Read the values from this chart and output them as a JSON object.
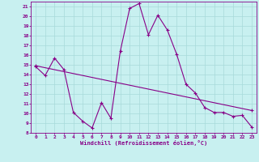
{
  "xlabel": "Windchill (Refroidissement éolien,°C)",
  "bg_color": "#c8f0f0",
  "grid_color": "#a8dada",
  "line_color": "#880088",
  "xlim": [
    -0.5,
    23.5
  ],
  "ylim": [
    8,
    21.5
  ],
  "xticks": [
    0,
    1,
    2,
    3,
    4,
    5,
    6,
    7,
    8,
    9,
    10,
    11,
    12,
    13,
    14,
    15,
    16,
    17,
    18,
    19,
    20,
    21,
    22,
    23
  ],
  "yticks": [
    8,
    9,
    10,
    11,
    12,
    13,
    14,
    15,
    16,
    17,
    18,
    19,
    20,
    21
  ],
  "line1_x": [
    0,
    1,
    2,
    3,
    4,
    5,
    6,
    7,
    8,
    9,
    10,
    11,
    12,
    13,
    14,
    15,
    16,
    17,
    18,
    19,
    20,
    21,
    22,
    23
  ],
  "line1_y": [
    14.8,
    13.9,
    15.7,
    14.5,
    10.1,
    9.2,
    8.5,
    11.1,
    9.5,
    16.4,
    20.8,
    21.3,
    18.1,
    20.1,
    18.6,
    16.1,
    13.0,
    12.1,
    10.6,
    10.1,
    10.1,
    9.7,
    9.8,
    8.6
  ],
  "line2_x": [
    0,
    23
  ],
  "line2_y": [
    14.9,
    10.3
  ]
}
